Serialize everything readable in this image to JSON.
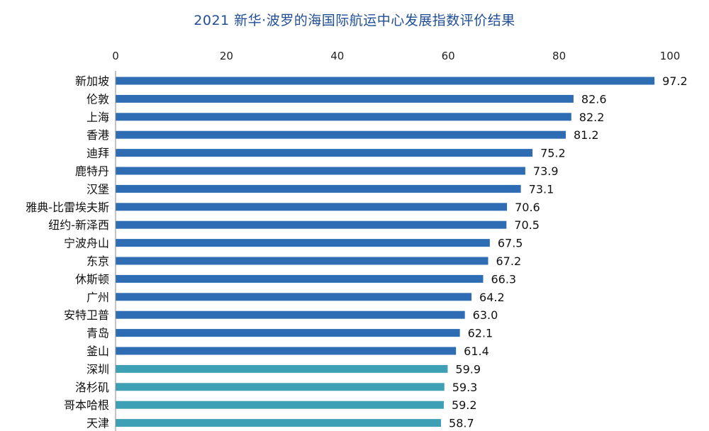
{
  "title": "2021 新华·波罗的海国际航运中心发展指数评价结果",
  "colors": {
    "primary_bar": "#2e6db4",
    "secondary_bar": "#3ea0b5",
    "title": "#1f4e96"
  },
  "chart_data": {
    "type": "bar",
    "orientation": "horizontal",
    "title": "2021 新华·波罗的海国际航运中心发展指数评价结果",
    "xlim": [
      0,
      100
    ],
    "xticks": [
      0,
      20,
      40,
      60,
      80,
      100
    ],
    "x_axis_position": "top",
    "categories": [
      "新加坡",
      "伦敦",
      "上海",
      "香港",
      "迪拜",
      "鹿特丹",
      "汉堡",
      "雅典-比雷埃夫斯",
      "纽约-新泽西",
      "宁波舟山",
      "东京",
      "休斯顿",
      "广州",
      "安特卫普",
      "青岛",
      "釜山",
      "深圳",
      "洛杉矶",
      "哥本哈根",
      "天津"
    ],
    "values": [
      97.2,
      82.6,
      82.2,
      81.2,
      75.2,
      73.9,
      73.1,
      70.6,
      70.5,
      67.5,
      67.2,
      66.3,
      64.2,
      63.0,
      62.1,
      61.4,
      59.9,
      59.3,
      59.2,
      58.7
    ],
    "value_labels": [
      "97.2",
      "82.6",
      "82.2",
      "81.2",
      "75.2",
      "73.9",
      "73.1",
      "70.6",
      "70.5",
      "67.5",
      "67.2",
      "66.3",
      "64.2",
      "63.0",
      "62.1",
      "61.4",
      "59.9",
      "59.3",
      "59.2",
      "58.7"
    ],
    "bar_color_groups": [
      "primary",
      "primary",
      "primary",
      "primary",
      "primary",
      "primary",
      "primary",
      "primary",
      "primary",
      "primary",
      "primary",
      "primary",
      "primary",
      "primary",
      "primary",
      "primary",
      "secondary",
      "secondary",
      "secondary",
      "secondary"
    ],
    "grid": false,
    "legend": "none"
  }
}
